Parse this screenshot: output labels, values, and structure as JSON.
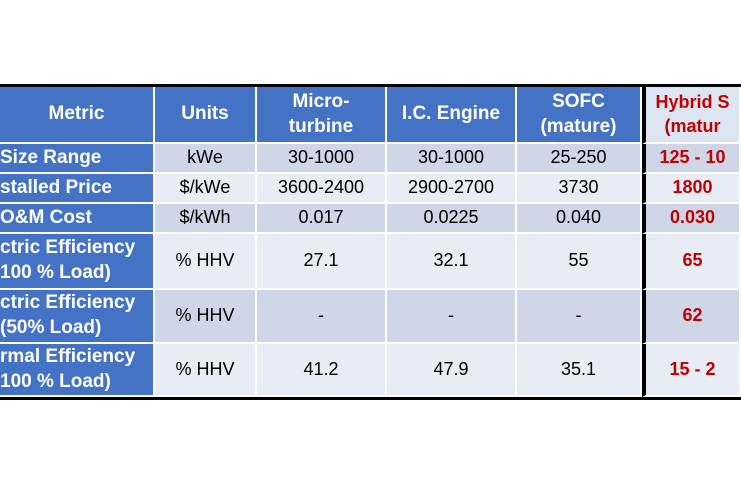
{
  "table": {
    "header": [
      "Metric",
      "Units",
      "Micro-\nturbine",
      "I.C. Engine",
      "SOFC\n(mature)",
      "Hybrid S\n(matur"
    ],
    "rows": [
      [
        "Size Range",
        "kWe",
        "30-1000",
        "30-1000",
        "25-250",
        "125 - 10"
      ],
      [
        "stalled Price",
        "$/kWe",
        "3600-2400",
        "2900-2700",
        "3730",
        "1800"
      ],
      [
        "O&M Cost",
        "$/kWh",
        "0.017",
        "0.0225",
        "0.040",
        "0.030"
      ],
      [
        "ctric Efficiency\n100 % Load)",
        "% HHV",
        "27.1",
        "32.1",
        "55",
        "65"
      ],
      [
        "ctric Efficiency\n(50% Load)",
        "% HHV",
        "-",
        "-",
        "-",
        "62"
      ],
      [
        "rmal Efficiency\n100 % Load)",
        "% HHV",
        "41.2",
        "47.9",
        "35.1",
        "15 - 2"
      ]
    ]
  }
}
